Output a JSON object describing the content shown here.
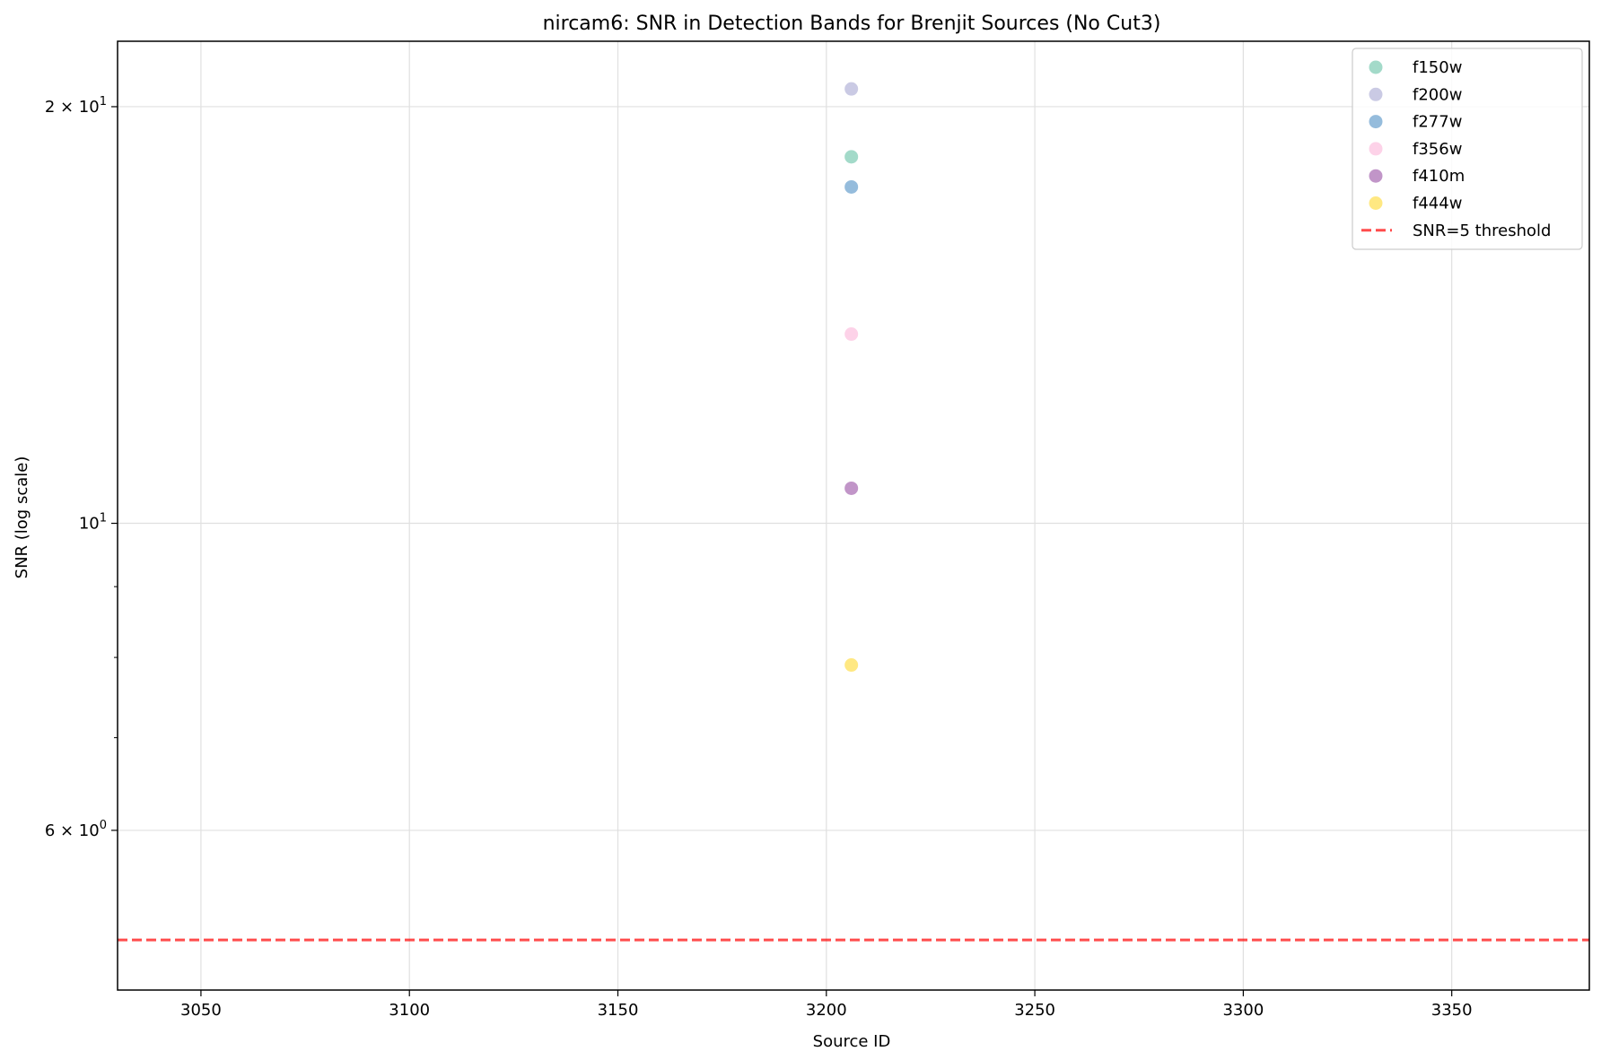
{
  "chart_data": {
    "type": "scatter",
    "title": "nircam6: SNR in Detection Bands for Brenjit Sources (No Cut3)",
    "xlabel": "Source ID",
    "ylabel": "SNR (log scale)",
    "xscale": "linear",
    "yscale": "log",
    "xlim": [
      3030,
      3383
    ],
    "ylim": [
      4.6,
      22.3
    ],
    "grid": true,
    "legend_position": "top-right",
    "x_ticks": [
      {
        "value": 3050,
        "label": "3050"
      },
      {
        "value": 3100,
        "label": "3100"
      },
      {
        "value": 3150,
        "label": "3150"
      },
      {
        "value": 3200,
        "label": "3200"
      },
      {
        "value": 3250,
        "label": "3250"
      },
      {
        "value": 3300,
        "label": "3300"
      },
      {
        "value": 3350,
        "label": "3350"
      }
    ],
    "y_major_ticks": [
      {
        "value": 6,
        "base": "6",
        "sep": " × ",
        "exp_base": "10",
        "exp": "0"
      },
      {
        "value": 10,
        "base": "",
        "sep": "",
        "exp_base": "10",
        "exp": "1"
      },
      {
        "value": 20,
        "base": "2",
        "sep": " × ",
        "exp_base": "10",
        "exp": "1"
      }
    ],
    "y_minor_ticks": [
      7,
      8,
      9
    ],
    "series": [
      {
        "name": "f150w",
        "color": "#66c2a5",
        "points": [
          {
            "x": 3206,
            "y": 18.4
          }
        ]
      },
      {
        "name": "f200w",
        "color": "#a6a6d2",
        "points": [
          {
            "x": 3206,
            "y": 20.6
          }
        ]
      },
      {
        "name": "f277w",
        "color": "#4f90c4",
        "points": [
          {
            "x": 3206,
            "y": 17.5
          }
        ]
      },
      {
        "name": "f356w",
        "color": "#fbb4d9",
        "points": [
          {
            "x": 3206,
            "y": 13.7
          }
        ]
      },
      {
        "name": "f410m",
        "color": "#984ea3",
        "points": [
          {
            "x": 3206,
            "y": 10.6
          }
        ]
      },
      {
        "name": "f444w",
        "color": "#ffd92f",
        "points": [
          {
            "x": 3206,
            "y": 7.9
          }
        ]
      }
    ],
    "threshold": {
      "name": "SNR=5 threshold",
      "value": 5,
      "color": "#ff0000"
    }
  }
}
